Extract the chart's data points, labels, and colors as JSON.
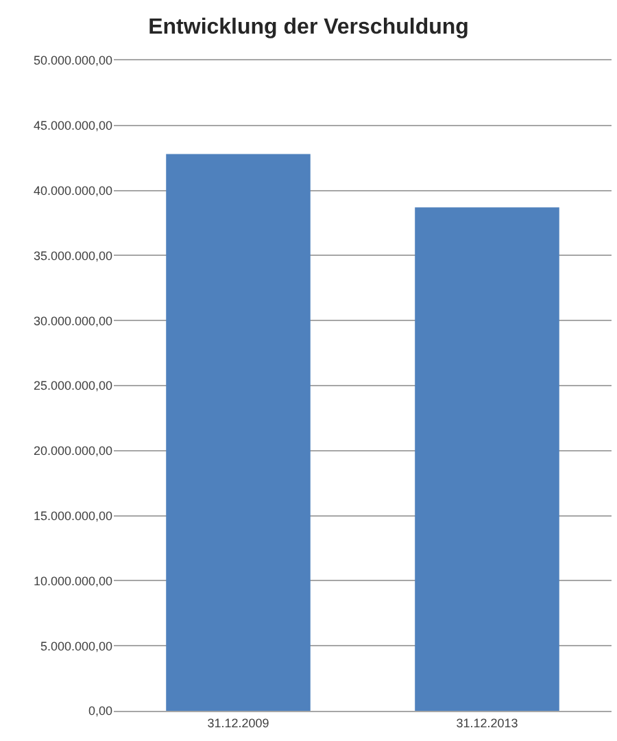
{
  "chart_data": {
    "type": "bar",
    "title": "Entwicklung der Verschuldung",
    "categories": [
      "31.12.2009",
      "31.12.2013"
    ],
    "values": [
      42800000,
      38700000
    ],
    "color": "#4f81bd",
    "ylim": [
      0,
      50000000
    ],
    "yticks": [
      {
        "value": 0,
        "label": "0,00"
      },
      {
        "value": 5000000,
        "label": "5.000.000,00"
      },
      {
        "value": 10000000,
        "label": "10.000.000,00"
      },
      {
        "value": 15000000,
        "label": "15.000.000,00"
      },
      {
        "value": 20000000,
        "label": "20.000.000,00"
      },
      {
        "value": 25000000,
        "label": "25.000.000,00"
      },
      {
        "value": 30000000,
        "label": "30.000.000,00"
      },
      {
        "value": 35000000,
        "label": "35.000.000,00"
      },
      {
        "value": 40000000,
        "label": "40.000.000,00"
      },
      {
        "value": 45000000,
        "label": "45.000.000,00"
      },
      {
        "value": 50000000,
        "label": "50.000.000,00"
      }
    ],
    "grid": "y"
  }
}
